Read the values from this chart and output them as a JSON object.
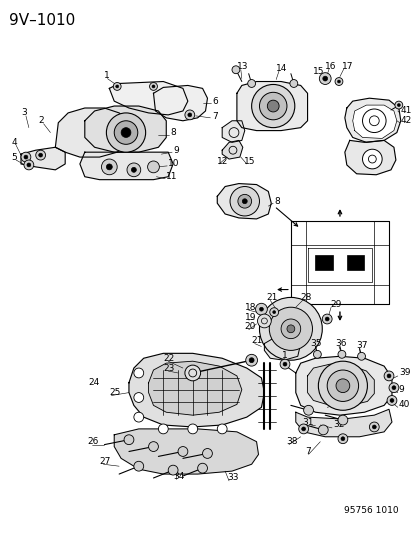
{
  "title": "9V–1010",
  "footer": "95756 1010",
  "bg_color": "#ffffff",
  "line_color": "#000000",
  "title_fontsize": 11,
  "label_fontsize": 6.5,
  "footer_fontsize": 6.5,
  "fig_width": 4.14,
  "fig_height": 5.33,
  "dpi": 100
}
